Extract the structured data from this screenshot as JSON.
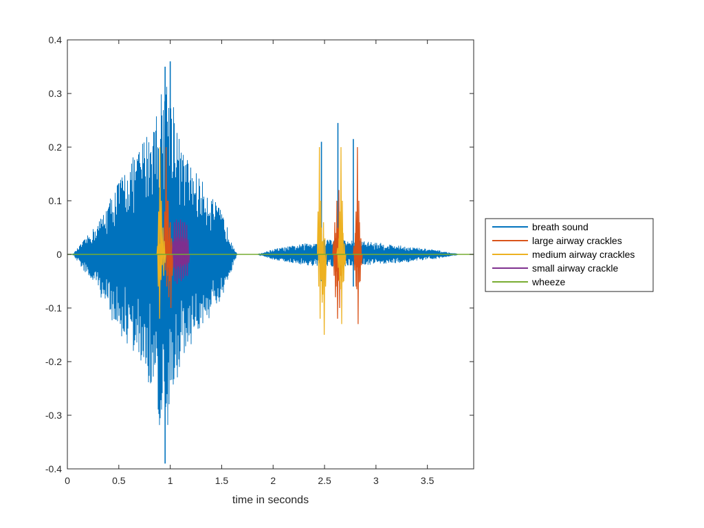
{
  "chart_data": {
    "type": "line",
    "title": "",
    "xlabel": "time in seconds",
    "ylabel": "",
    "xlim": [
      0,
      3.95
    ],
    "ylim": [
      -0.4,
      0.4
    ],
    "xticks": [
      0,
      0.5,
      1,
      1.5,
      2,
      2.5,
      3,
      3.5
    ],
    "xtick_labels": [
      "0",
      "0.5",
      "1",
      "1.5",
      "2",
      "2.5",
      "3",
      "3.5"
    ],
    "yticks": [
      -0.4,
      -0.3,
      -0.2,
      -0.1,
      0,
      0.1,
      0.2,
      0.3,
      0.4
    ],
    "ytick_labels": [
      "-0.4",
      "-0.3",
      "-0.2",
      "-0.1",
      "0",
      "0.1",
      "0.2",
      "0.3",
      "0.4"
    ],
    "grid": false,
    "legend_position": "outside-right",
    "series": [
      {
        "name": "breath sound",
        "color": "#0072BD",
        "kind": "envelope",
        "segments": [
          {
            "x": [
              0.05,
              0.3,
              0.5,
              0.7,
              0.85,
              0.95,
              1.0,
              1.1,
              1.3,
              1.5,
              1.65,
              1.7
            ],
            "upper": [
              0.0,
              0.06,
              0.14,
              0.2,
              0.26,
              0.33,
              0.35,
              0.2,
              0.14,
              0.08,
              0.0,
              0.0
            ],
            "lower": [
              0.0,
              -0.07,
              -0.15,
              -0.2,
              -0.27,
              -0.39,
              -0.3,
              -0.2,
              -0.14,
              -0.09,
              0.0,
              0.0
            ]
          },
          {
            "x": [
              1.85,
              2.0,
              2.3,
              2.5,
              2.9,
              3.3,
              3.6,
              3.8
            ],
            "upper": [
              0.0,
              0.01,
              0.02,
              0.03,
              0.025,
              0.015,
              0.008,
              0.0
            ],
            "lower": [
              0.0,
              -0.01,
              -0.02,
              -0.025,
              -0.02,
              -0.015,
              -0.008,
              0.0
            ]
          }
        ],
        "spikes": [
          {
            "x": 0.95,
            "top": 0.35,
            "bottom": -0.39
          },
          {
            "x": 1.0,
            "top": 0.36,
            "bottom": -0.1
          },
          {
            "x": 2.63,
            "top": 0.245,
            "bottom": -0.05
          },
          {
            "x": 2.78,
            "top": 0.215,
            "bottom": -0.06
          },
          {
            "x": 2.47,
            "top": 0.21,
            "bottom": -0.05
          }
        ]
      },
      {
        "name": "large airway crackles",
        "color": "#D95319",
        "kind": "crackles",
        "events": [
          {
            "x": 0.96,
            "top": 0.2,
            "bottom": -0.06
          },
          {
            "x": 0.98,
            "top": 0.1,
            "bottom": -0.08
          },
          {
            "x": 1.0,
            "top": 0.06,
            "bottom": -0.1
          },
          {
            "x": 2.6,
            "top": 0.06,
            "bottom": -0.08
          },
          {
            "x": 2.62,
            "top": 0.1,
            "bottom": -0.12
          },
          {
            "x": 2.64,
            "top": 0.12,
            "bottom": -0.1
          },
          {
            "x": 2.66,
            "top": 0.06,
            "bottom": -0.05
          },
          {
            "x": 2.8,
            "top": 0.04,
            "bottom": -0.06
          },
          {
            "x": 2.82,
            "top": 0.2,
            "bottom": -0.13
          },
          {
            "x": 2.84,
            "top": 0.06,
            "bottom": -0.05
          }
        ]
      },
      {
        "name": "medium airway crackles",
        "color": "#EDB120",
        "kind": "crackles",
        "events": [
          {
            "x": 0.89,
            "top": 0.04,
            "bottom": -0.12
          },
          {
            "x": 0.9,
            "top": 0.2,
            "bottom": -0.03
          },
          {
            "x": 0.93,
            "top": 0.05,
            "bottom": -0.04
          },
          {
            "x": 2.45,
            "top": 0.2,
            "bottom": -0.12
          },
          {
            "x": 2.47,
            "top": 0.05,
            "bottom": -0.09
          },
          {
            "x": 2.49,
            "top": 0.06,
            "bottom": -0.15
          },
          {
            "x": 2.64,
            "top": 0.03,
            "bottom": -0.05
          },
          {
            "x": 2.66,
            "top": 0.2,
            "bottom": -0.13
          },
          {
            "x": 2.68,
            "top": 0.04,
            "bottom": -0.05
          }
        ]
      },
      {
        "name": "small airway crackle",
        "color": "#7E2F8E",
        "kind": "crackles",
        "events": [
          {
            "x": 1.04,
            "top": 0.06,
            "bottom": -0.05
          },
          {
            "x": 1.06,
            "top": 0.065,
            "bottom": -0.055
          },
          {
            "x": 1.08,
            "top": 0.06,
            "bottom": -0.045
          },
          {
            "x": 1.1,
            "top": 0.065,
            "bottom": -0.05
          },
          {
            "x": 1.12,
            "top": 0.06,
            "bottom": -0.045
          },
          {
            "x": 1.14,
            "top": 0.06,
            "bottom": -0.04
          },
          {
            "x": 1.16,
            "top": 0.055,
            "bottom": -0.04
          }
        ]
      },
      {
        "name": "wheeze",
        "color": "#77AC30",
        "kind": "line",
        "x": [
          0,
          3.95
        ],
        "y": [
          0,
          0
        ]
      }
    ]
  }
}
